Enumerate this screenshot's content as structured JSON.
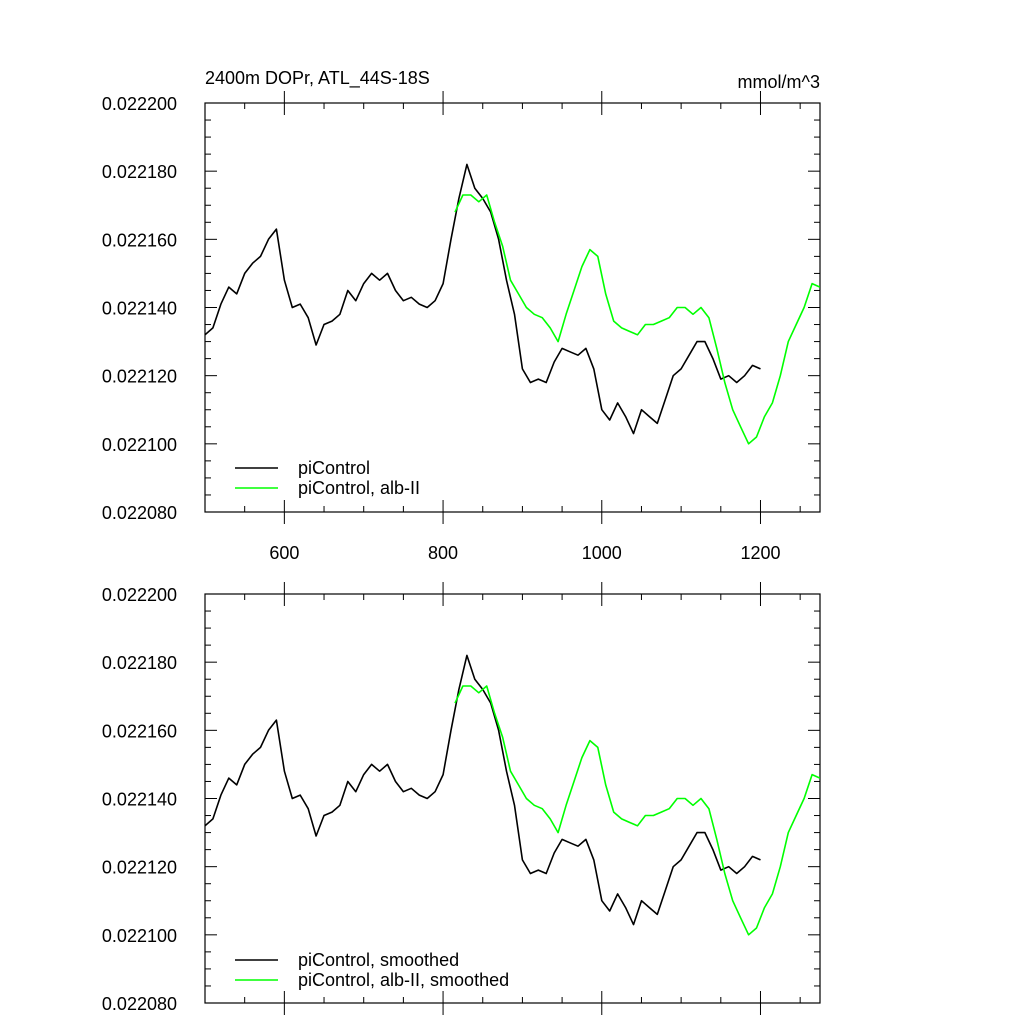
{
  "colors": {
    "piControl": "#000000",
    "alb_II": "#00ff00",
    "axis": "#000000",
    "background": "#ffffff"
  },
  "chart_data": [
    {
      "type": "line",
      "title_left": "2400m DOPr, ATL_44S-18S",
      "title_right": "mmol/m^3",
      "xlabel": "",
      "ylabel": "",
      "xlim": [
        500,
        1275
      ],
      "ylim": [
        0.02208,
        0.0222
      ],
      "xticks": [
        600,
        800,
        1000,
        1200
      ],
      "xtick_labels": [
        "600",
        "800",
        "1000",
        "1200"
      ],
      "yticks": [
        0.02208,
        0.0221,
        0.02212,
        0.02214,
        0.02216,
        0.02218,
        0.0222
      ],
      "ytick_labels": [
        "0.022080",
        "0.022100",
        "0.022120",
        "0.022140",
        "0.022160",
        "0.022180",
        "0.022200"
      ],
      "grid": false,
      "legend_position": "bottom-left",
      "series": [
        {
          "name": "piControl",
          "color": "#000000",
          "x": [
            500,
            510,
            520,
            530,
            540,
            550,
            560,
            570,
            580,
            590,
            600,
            610,
            620,
            630,
            640,
            650,
            660,
            670,
            680,
            690,
            700,
            710,
            720,
            730,
            740,
            750,
            760,
            770,
            780,
            790,
            800,
            810,
            820,
            830,
            840,
            850,
            860,
            870,
            880,
            890,
            900,
            910,
            920,
            930,
            940,
            950,
            960,
            970,
            980,
            990,
            1000,
            1010,
            1020,
            1030,
            1040,
            1050,
            1060,
            1070,
            1080,
            1090,
            1100,
            1110,
            1120,
            1130,
            1140,
            1150,
            1160,
            1170,
            1180,
            1190,
            1200
          ],
          "y": [
            0.022132,
            0.022134,
            0.022141,
            0.022146,
            0.022144,
            0.02215,
            0.022153,
            0.022155,
            0.02216,
            0.022163,
            0.022148,
            0.02214,
            0.022141,
            0.022137,
            0.022129,
            0.022135,
            0.022136,
            0.022138,
            0.022145,
            0.022142,
            0.022147,
            0.02215,
            0.022148,
            0.02215,
            0.022145,
            0.022142,
            0.022143,
            0.022141,
            0.02214,
            0.022142,
            0.022147,
            0.02216,
            0.022172,
            0.022182,
            0.022175,
            0.022172,
            0.022168,
            0.02216,
            0.022148,
            0.022138,
            0.022122,
            0.022118,
            0.022119,
            0.022118,
            0.022124,
            0.022128,
            0.022127,
            0.022126,
            0.022128,
            0.022122,
            0.02211,
            0.022107,
            0.022112,
            0.022108,
            0.022103,
            0.02211,
            0.022108,
            0.022106,
            0.022113,
            0.02212,
            0.022122,
            0.022126,
            0.02213,
            0.02213,
            0.022125,
            0.022119,
            0.02212,
            0.022118,
            0.02212,
            0.022123,
            0.022122
          ]
        },
        {
          "name": "piControl, alb-II",
          "color": "#00ff00",
          "x": [
            815,
            825,
            835,
            845,
            855,
            865,
            875,
            885,
            895,
            905,
            915,
            925,
            935,
            945,
            955,
            965,
            975,
            985,
            995,
            1005,
            1015,
            1025,
            1035,
            1045,
            1055,
            1065,
            1075,
            1085,
            1095,
            1105,
            1115,
            1125,
            1135,
            1145,
            1155,
            1165,
            1175,
            1185,
            1195,
            1205,
            1215,
            1225,
            1235,
            1245,
            1255,
            1265,
            1275
          ],
          "y": [
            0.022168,
            0.022173,
            0.022173,
            0.022171,
            0.022173,
            0.022165,
            0.022158,
            0.022148,
            0.022144,
            0.02214,
            0.022138,
            0.022137,
            0.022134,
            0.02213,
            0.022138,
            0.022145,
            0.022152,
            0.022157,
            0.022155,
            0.022144,
            0.022136,
            0.022134,
            0.022133,
            0.022132,
            0.022135,
            0.022135,
            0.022136,
            0.022137,
            0.02214,
            0.02214,
            0.022138,
            0.02214,
            0.022137,
            0.022128,
            0.022118,
            0.02211,
            0.022105,
            0.0221,
            0.022102,
            0.022108,
            0.022112,
            0.02212,
            0.02213,
            0.022135,
            0.02214,
            0.022147,
            0.022146
          ]
        }
      ]
    },
    {
      "type": "line",
      "title_left": "",
      "title_right": "",
      "xlabel": "",
      "ylabel": "",
      "xlim": [
        500,
        1275
      ],
      "ylim": [
        0.02208,
        0.0222
      ],
      "xticks": [
        600,
        800,
        1000,
        1200
      ],
      "xtick_labels": [],
      "yticks": [
        0.02208,
        0.0221,
        0.02212,
        0.02214,
        0.02216,
        0.02218,
        0.0222
      ],
      "ytick_labels": [
        "0.022080",
        "0.022100",
        "0.022120",
        "0.022140",
        "0.022160",
        "0.022180",
        "0.022200"
      ],
      "grid": false,
      "legend_position": "bottom-left",
      "series": [
        {
          "name": "piControl, smoothed",
          "color": "#000000",
          "x": [
            500,
            510,
            520,
            530,
            540,
            550,
            560,
            570,
            580,
            590,
            600,
            610,
            620,
            630,
            640,
            650,
            660,
            670,
            680,
            690,
            700,
            710,
            720,
            730,
            740,
            750,
            760,
            770,
            780,
            790,
            800,
            810,
            820,
            830,
            840,
            850,
            860,
            870,
            880,
            890,
            900,
            910,
            920,
            930,
            940,
            950,
            960,
            970,
            980,
            990,
            1000,
            1010,
            1020,
            1030,
            1040,
            1050,
            1060,
            1070,
            1080,
            1090,
            1100,
            1110,
            1120,
            1130,
            1140,
            1150,
            1160,
            1170,
            1180,
            1190,
            1200
          ],
          "y": [
            0.022132,
            0.022134,
            0.022141,
            0.022146,
            0.022144,
            0.02215,
            0.022153,
            0.022155,
            0.02216,
            0.022163,
            0.022148,
            0.02214,
            0.022141,
            0.022137,
            0.022129,
            0.022135,
            0.022136,
            0.022138,
            0.022145,
            0.022142,
            0.022147,
            0.02215,
            0.022148,
            0.02215,
            0.022145,
            0.022142,
            0.022143,
            0.022141,
            0.02214,
            0.022142,
            0.022147,
            0.02216,
            0.022172,
            0.022182,
            0.022175,
            0.022172,
            0.022168,
            0.02216,
            0.022148,
            0.022138,
            0.022122,
            0.022118,
            0.022119,
            0.022118,
            0.022124,
            0.022128,
            0.022127,
            0.022126,
            0.022128,
            0.022122,
            0.02211,
            0.022107,
            0.022112,
            0.022108,
            0.022103,
            0.02211,
            0.022108,
            0.022106,
            0.022113,
            0.02212,
            0.022122,
            0.022126,
            0.02213,
            0.02213,
            0.022125,
            0.022119,
            0.02212,
            0.022118,
            0.02212,
            0.022123,
            0.022122
          ]
        },
        {
          "name": "piControl, alb-II, smoothed",
          "color": "#00ff00",
          "x": [
            815,
            825,
            835,
            845,
            855,
            865,
            875,
            885,
            895,
            905,
            915,
            925,
            935,
            945,
            955,
            965,
            975,
            985,
            995,
            1005,
            1015,
            1025,
            1035,
            1045,
            1055,
            1065,
            1075,
            1085,
            1095,
            1105,
            1115,
            1125,
            1135,
            1145,
            1155,
            1165,
            1175,
            1185,
            1195,
            1205,
            1215,
            1225,
            1235,
            1245,
            1255,
            1265,
            1275
          ],
          "y": [
            0.022168,
            0.022173,
            0.022173,
            0.022171,
            0.022173,
            0.022165,
            0.022158,
            0.022148,
            0.022144,
            0.02214,
            0.022138,
            0.022137,
            0.022134,
            0.02213,
            0.022138,
            0.022145,
            0.022152,
            0.022157,
            0.022155,
            0.022144,
            0.022136,
            0.022134,
            0.022133,
            0.022132,
            0.022135,
            0.022135,
            0.022136,
            0.022137,
            0.02214,
            0.02214,
            0.022138,
            0.02214,
            0.022137,
            0.022128,
            0.022118,
            0.02211,
            0.022105,
            0.0221,
            0.022102,
            0.022108,
            0.022112,
            0.02212,
            0.02213,
            0.022135,
            0.02214,
            0.022147,
            0.022146
          ]
        }
      ]
    }
  ]
}
